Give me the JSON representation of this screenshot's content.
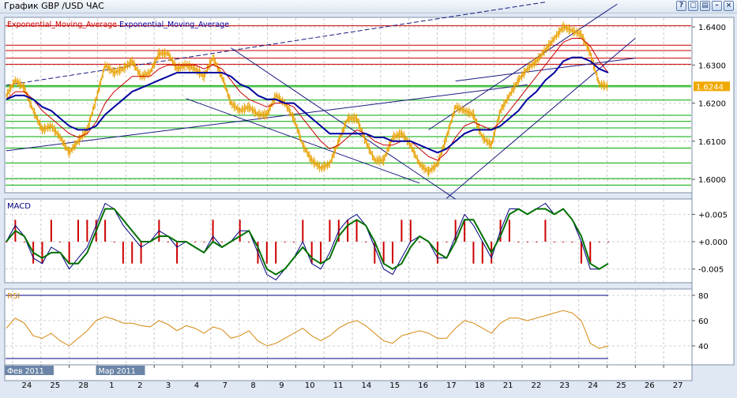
{
  "window": {
    "title": "График GBP /USD  ЧАС",
    "buttons": [
      {
        "name": "help-button",
        "glyph": "?"
      },
      {
        "name": "restore-button",
        "glyph": "▢"
      },
      {
        "name": "split-button",
        "glyph": "▤"
      },
      {
        "name": "minimize-button",
        "glyph": "–"
      },
      {
        "name": "close-button",
        "glyph": "×"
      }
    ]
  },
  "colors": {
    "price": "#e8a000",
    "ema_fast": "#c80000",
    "ema_slow": "#0000a0",
    "macd": "#000080",
    "signal": "#007000",
    "hist": "#cc0000",
    "rsi": "#d4860b",
    "resistance": "#cc0000",
    "support": "#00aa00",
    "trend": "#1a1a80"
  },
  "chart_data": [
    {
      "type": "line",
      "panel": "price",
      "legend": [
        "Exponential_Moving_Average",
        "Exponential_Moving_Average"
      ],
      "ylim": [
        1.5965,
        1.6425
      ],
      "yticks": [
        "1.6400",
        "1.6300",
        "1.6200",
        "1.6100",
        "1.6000"
      ],
      "ytick_values": [
        1.64,
        1.63,
        1.62,
        1.61,
        1.6
      ],
      "current_price_label": "1.6244",
      "current_price": 1.6244,
      "resistance_levels": [
        1.6403,
        1.6352,
        1.6338,
        1.6318,
        1.6302
      ],
      "support_levels": [
        1.6246,
        1.6243,
        1.6208,
        1.6168,
        1.6152,
        1.6135,
        1.6112,
        1.6082,
        1.6043,
        1.6002,
        1.5985
      ],
      "price": [
        1.622,
        1.626,
        1.624,
        1.618,
        1.613,
        1.614,
        1.611,
        1.607,
        1.61,
        1.613,
        1.621,
        1.63,
        1.628,
        1.629,
        1.631,
        1.627,
        1.628,
        1.633,
        1.633,
        1.629,
        1.63,
        1.629,
        1.627,
        1.632,
        1.627,
        1.62,
        1.618,
        1.619,
        1.617,
        1.617,
        1.622,
        1.62,
        1.616,
        1.609,
        1.605,
        1.603,
        1.604,
        1.61,
        1.616,
        1.616,
        1.61,
        1.605,
        1.605,
        1.611,
        1.612,
        1.609,
        1.604,
        1.602,
        1.604,
        1.611,
        1.619,
        1.618,
        1.617,
        1.611,
        1.609,
        1.618,
        1.622,
        1.626,
        1.629,
        1.631,
        1.634,
        1.637,
        1.64,
        1.639,
        1.638,
        1.633,
        1.625,
        1.6244
      ],
      "ema_fast": [
        1.621,
        1.623,
        1.623,
        1.621,
        1.618,
        1.616,
        1.614,
        1.612,
        1.611,
        1.612,
        1.615,
        1.62,
        1.623,
        1.625,
        1.627,
        1.627,
        1.627,
        1.629,
        1.63,
        1.63,
        1.63,
        1.63,
        1.629,
        1.63,
        1.629,
        1.626,
        1.623,
        1.621,
        1.62,
        1.619,
        1.62,
        1.62,
        1.619,
        1.616,
        1.613,
        1.61,
        1.608,
        1.609,
        1.611,
        1.613,
        1.612,
        1.61,
        1.609,
        1.609,
        1.61,
        1.61,
        1.608,
        1.606,
        1.605,
        1.607,
        1.611,
        1.614,
        1.615,
        1.614,
        1.613,
        1.615,
        1.618,
        1.621,
        1.624,
        1.627,
        1.63,
        1.633,
        1.636,
        1.637,
        1.637,
        1.635,
        1.631,
        1.628
      ],
      "ema_slow": [
        1.621,
        1.622,
        1.622,
        1.621,
        1.619,
        1.618,
        1.616,
        1.614,
        1.613,
        1.613,
        1.614,
        1.617,
        1.619,
        1.621,
        1.623,
        1.624,
        1.625,
        1.626,
        1.627,
        1.628,
        1.628,
        1.628,
        1.628,
        1.628,
        1.628,
        1.627,
        1.625,
        1.624,
        1.622,
        1.621,
        1.621,
        1.62,
        1.62,
        1.618,
        1.616,
        1.614,
        1.612,
        1.612,
        1.612,
        1.612,
        1.612,
        1.611,
        1.611,
        1.61,
        1.61,
        1.61,
        1.609,
        1.608,
        1.607,
        1.608,
        1.61,
        1.612,
        1.613,
        1.613,
        1.613,
        1.614,
        1.616,
        1.618,
        1.621,
        1.623,
        1.626,
        1.628,
        1.631,
        1.632,
        1.632,
        1.631,
        1.629,
        1.628
      ]
    },
    {
      "type": "line",
      "panel": "macd",
      "title": "MACD",
      "ylim": [
        -0.0075,
        0.0078
      ],
      "yticks": [
        "+0.005",
        "+0.000",
        "-0.005"
      ],
      "ytick_values": [
        0.005,
        0.0,
        -0.005
      ],
      "macd": [
        0.0,
        0.003,
        0.001,
        -0.003,
        -0.004,
        -0.001,
        -0.002,
        -0.005,
        -0.003,
        -0.001,
        0.003,
        0.007,
        0.006,
        0.003,
        0.001,
        -0.001,
        0.0,
        0.002,
        0.001,
        -0.001,
        0.0,
        -0.001,
        -0.002,
        0.001,
        -0.001,
        0.0,
        0.002,
        0.002,
        -0.002,
        -0.006,
        -0.007,
        -0.005,
        -0.003,
        0.0,
        -0.004,
        -0.005,
        -0.002,
        0.002,
        0.004,
        0.005,
        0.003,
        -0.001,
        -0.005,
        -0.006,
        -0.003,
        0.0,
        0.001,
        0.0,
        -0.003,
        -0.003,
        0.001,
        0.005,
        0.003,
        0.0,
        -0.003,
        0.002,
        0.006,
        0.006,
        0.005,
        0.006,
        0.007,
        0.005,
        0.006,
        0.004,
        0.0,
        -0.005,
        -0.005,
        -0.004
      ],
      "signal": [
        0.0,
        0.002,
        0.001,
        -0.002,
        -0.003,
        -0.002,
        -0.002,
        -0.004,
        -0.004,
        -0.002,
        0.002,
        0.006,
        0.006,
        0.004,
        0.002,
        0.0,
        0.0,
        0.001,
        0.001,
        0.0,
        0.0,
        -0.001,
        -0.002,
        0.0,
        -0.001,
        0.0,
        0.001,
        0.002,
        -0.001,
        -0.005,
        -0.006,
        -0.005,
        -0.003,
        -0.001,
        -0.003,
        -0.004,
        -0.003,
        0.001,
        0.003,
        0.004,
        0.003,
        0.0,
        -0.004,
        -0.005,
        -0.004,
        -0.001,
        0.001,
        0.0,
        -0.002,
        -0.003,
        0.0,
        0.004,
        0.004,
        0.001,
        -0.002,
        0.001,
        0.005,
        0.006,
        0.005,
        0.006,
        0.006,
        0.005,
        0.006,
        0.004,
        0.001,
        -0.004,
        -0.005,
        -0.004
      ]
    },
    {
      "type": "line",
      "panel": "rsi",
      "title": "RSI",
      "ylim": [
        25,
        85
      ],
      "yticks": [
        "80",
        "60",
        "40"
      ],
      "ytick_values": [
        80,
        60,
        40
      ],
      "levels": [
        80,
        30
      ],
      "rsi": [
        54,
        62,
        58,
        48,
        46,
        50,
        44,
        40,
        46,
        52,
        60,
        63,
        61,
        58,
        58,
        56,
        55,
        60,
        57,
        52,
        56,
        54,
        50,
        55,
        53,
        46,
        48,
        52,
        44,
        40,
        42,
        46,
        50,
        54,
        48,
        44,
        48,
        54,
        58,
        60,
        56,
        50,
        44,
        42,
        48,
        50,
        52,
        50,
        46,
        46,
        54,
        60,
        58,
        54,
        50,
        58,
        62,
        62,
        60,
        62,
        64,
        66,
        68,
        66,
        60,
        42,
        38,
        40
      ]
    }
  ],
  "x_axis": {
    "days": [
      "24",
      "25",
      "28",
      "1",
      "2",
      "3",
      "4",
      "7",
      "8",
      "9",
      "10",
      "11",
      "14",
      "15",
      "16",
      "17",
      "18",
      "21",
      "22",
      "23",
      "24",
      "25",
      "26",
      "27"
    ],
    "months": [
      "Фев 2011",
      "Мар 2011"
    ]
  }
}
